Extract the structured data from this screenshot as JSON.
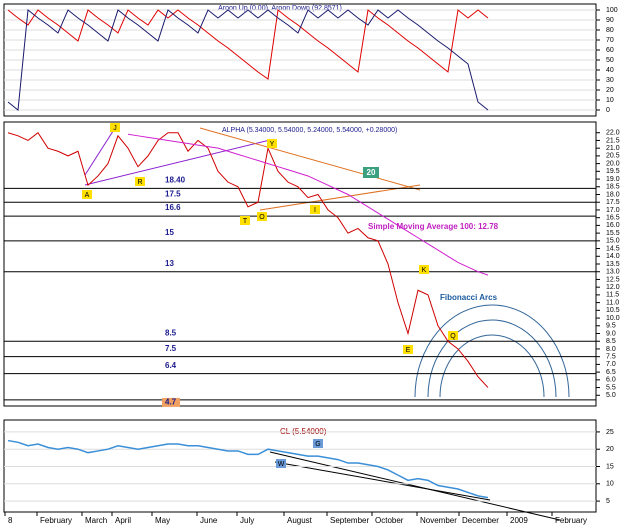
{
  "chart_data": [
    {
      "type": "line",
      "title": "Aroon Up (0.00), Aroon Down (92.8571)",
      "series": [
        {
          "color": "#e00000",
          "values": [
            100,
            92,
            85,
            100,
            92,
            85,
            77,
            69,
            100,
            92,
            85,
            77,
            100,
            92,
            85,
            100,
            92,
            100,
            92,
            85,
            77,
            69,
            62,
            54,
            46,
            38,
            31,
            100,
            92,
            85,
            77,
            69,
            62,
            54,
            46,
            38,
            100,
            92,
            85,
            77,
            69,
            62,
            54,
            46,
            38,
            100,
            92,
            100,
            92
          ]
        },
        {
          "color": "#1a1a6e",
          "values": [
            8,
            0,
            100,
            92,
            85,
            77,
            100,
            92,
            85,
            77,
            69,
            100,
            92,
            85,
            77,
            69,
            100,
            92,
            85,
            77,
            100,
            92,
            100,
            92,
            100,
            92,
            100,
            92,
            85,
            77,
            100,
            92,
            100,
            92,
            100,
            92,
            85,
            100,
            92,
            100,
            92,
            85,
            77,
            69,
            62,
            54,
            46,
            8,
            0
          ]
        }
      ],
      "ylim": [
        0,
        100
      ],
      "yticks": [
        0,
        10,
        20,
        30,
        40,
        50,
        60,
        70,
        80,
        90,
        100
      ]
    },
    {
      "type": "line",
      "title": "ALPHA (5.34000, 5.54000, 5.24000, 5.54000, +0.28000)",
      "series": [
        {
          "color": "#d00000",
          "values": [
            22.0,
            21.8,
            21.5,
            22.0,
            21.0,
            20.8,
            20.5,
            20.8,
            18.6,
            19.2,
            20.0,
            21.8,
            21.0,
            19.8,
            20.5,
            21.5,
            22.0,
            22.0,
            20.8,
            21.5,
            21.0,
            19.5,
            18.8,
            18.5,
            17.2,
            17.5,
            21.0,
            19.5,
            18.8,
            18.5,
            17.8,
            18.0,
            17.0,
            16.5,
            15.5,
            15.8,
            15.2,
            15.0,
            13.5,
            11.0,
            9.0,
            11.8,
            11.5,
            9.5,
            8.5,
            8.0,
            7.2,
            6.2,
            5.5
          ]
        },
        {
          "color": "#d020d0",
          "values": [
            null,
            null,
            null,
            null,
            null,
            null,
            null,
            null,
            null,
            null,
            null,
            null,
            21.9,
            21.8,
            21.7,
            21.6,
            21.5,
            21.4,
            21.3,
            21.2,
            21.1,
            21.0,
            20.8,
            20.6,
            20.4,
            20.2,
            20.0,
            19.8,
            19.6,
            19.4,
            19.2,
            18.9,
            18.6,
            18.3,
            18.0,
            17.6,
            17.2,
            16.8,
            16.4,
            16.0,
            15.6,
            15.2,
            14.8,
            14.4,
            14.0,
            13.6,
            13.3,
            13.0,
            12.78
          ]
        }
      ],
      "ylim": [
        4.5,
        22.5
      ],
      "yticks": [
        {
          "value": 22,
          "label": "22.0"
        },
        {
          "value": 21.5,
          "label": "21.5"
        },
        {
          "value": 21,
          "label": "21.0"
        },
        {
          "value": 20.5,
          "label": "20.5"
        },
        {
          "value": 20,
          "label": "20.0"
        },
        {
          "value": 19.5,
          "label": "19.5"
        },
        {
          "value": 19,
          "label": "19.0"
        },
        {
          "value": 18.5,
          "label": "18.5"
        },
        {
          "value": 18,
          "label": "18.0"
        },
        {
          "value": 17.5,
          "label": "17.5"
        },
        {
          "value": 17,
          "label": "17.0"
        },
        {
          "value": 16.5,
          "label": "16.5"
        },
        {
          "value": 16,
          "label": "16.0"
        },
        {
          "value": 15.5,
          "label": "15.5"
        },
        {
          "value": 15,
          "label": "15.0"
        },
        {
          "value": 14.5,
          "label": "14.5"
        },
        {
          "value": 14,
          "label": "14.0"
        },
        {
          "value": 13.5,
          "label": "13.5"
        },
        {
          "value": 13,
          "label": "13.0"
        },
        {
          "value": 12.5,
          "label": "12.5"
        },
        {
          "value": 12,
          "label": "12.0"
        },
        {
          "value": 11.5,
          "label": "11.5"
        },
        {
          "value": 11,
          "label": "11.0"
        },
        {
          "value": 10.5,
          "label": "10.5"
        },
        {
          "value": 10,
          "label": "10.0"
        },
        {
          "value": 9.5,
          "label": "9.5"
        },
        {
          "value": 9,
          "label": "9.0"
        },
        {
          "value": 8.5,
          "label": "8.5"
        },
        {
          "value": 8,
          "label": "8.0"
        },
        {
          "value": 7.5,
          "label": "7.5"
        },
        {
          "value": 7,
          "label": "7.0"
        },
        {
          "value": 6.5,
          "label": "6.5"
        },
        {
          "value": 6,
          "label": "6.0"
        },
        {
          "value": 5.5,
          "label": "5.5"
        },
        {
          "value": 5,
          "label": "5.0"
        }
      ],
      "levels": [
        {
          "value": 18.4,
          "label": "18.40"
        },
        {
          "value": 17.5,
          "label": "17.5"
        },
        {
          "value": 16.6,
          "label": "16.6"
        },
        {
          "value": 15,
          "label": "15"
        },
        {
          "value": 13,
          "label": "13"
        },
        {
          "value": 8.5,
          "label": "8.5"
        },
        {
          "value": 7.5,
          "label": "7.5"
        },
        {
          "value": 6.4,
          "label": "6.4"
        },
        {
          "value": 4.7,
          "label": "4.7"
        }
      ],
      "annotations": [
        "Simple Moving Average 100: 12.78",
        "Fibonacci Arcs",
        "20"
      ],
      "markers": [
        "A",
        "J",
        "R",
        "Y",
        "T",
        "O",
        "I",
        "K",
        "E",
        "Q"
      ]
    },
    {
      "type": "line",
      "title": "CL (5.54000)",
      "series": [
        {
          "color": "#3a8fd8",
          "values": [
            22.5,
            22,
            21,
            21.5,
            20.5,
            20,
            20.5,
            20,
            19,
            19.5,
            20,
            21,
            20.5,
            20,
            20.5,
            21,
            21.5,
            21.5,
            21,
            21,
            20.5,
            20,
            19.5,
            19.5,
            18.5,
            18.5,
            20,
            19.5,
            19,
            18.5,
            18,
            18,
            17.5,
            17,
            16,
            16,
            15.5,
            15,
            14,
            12.5,
            11,
            11.5,
            11,
            9.5,
            9,
            8.5,
            7.5,
            6.5,
            6
          ]
        }
      ],
      "ylim": [
        3,
        27
      ],
      "yticks": [
        5,
        10,
        15,
        20,
        25
      ],
      "markers": [
        "W",
        "G"
      ],
      "xtick_labels": [
        "8",
        "February",
        "March",
        "April",
        "May",
        "June",
        "July",
        "August",
        "September",
        "October",
        "November",
        "December",
        "2009",
        "February"
      ]
    }
  ]
}
